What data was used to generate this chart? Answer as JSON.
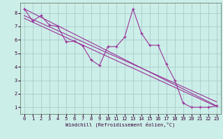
{
  "xlabel": "Windchill (Refroidissement éolien,°C)",
  "bg_color": "#cceee8",
  "grid_color": "#aacccc",
  "line_color": "#993399",
  "x_ticks": [
    0,
    1,
    2,
    3,
    4,
    5,
    6,
    7,
    8,
    9,
    10,
    11,
    12,
    13,
    14,
    15,
    16,
    17,
    18,
    19,
    20,
    21,
    22,
    23
  ],
  "y_ticks": [
    1,
    2,
    3,
    4,
    5,
    6,
    7,
    8
  ],
  "ylim": [
    0.5,
    8.75
  ],
  "xlim": [
    -0.5,
    23.5
  ],
  "series1_x": [
    0,
    1,
    2,
    3,
    4,
    5,
    6,
    7,
    8,
    9,
    10,
    11,
    12,
    13,
    14,
    15,
    16,
    17,
    18,
    19,
    20,
    21,
    22,
    23
  ],
  "series1_y": [
    8.3,
    7.4,
    7.8,
    7.1,
    7.0,
    5.85,
    5.9,
    5.55,
    4.5,
    4.1,
    5.5,
    5.5,
    6.2,
    8.3,
    6.5,
    5.6,
    5.6,
    4.2,
    3.0,
    1.3,
    1.0,
    1.0,
    1.0,
    1.1
  ],
  "series2_x": [
    0,
    23
  ],
  "series2_y": [
    8.3,
    1.1
  ],
  "series3_x": [
    0,
    23
  ],
  "series3_y": [
    7.8,
    1.4
  ],
  "series4_x": [
    0,
    23
  ],
  "series4_y": [
    7.6,
    1.05
  ]
}
